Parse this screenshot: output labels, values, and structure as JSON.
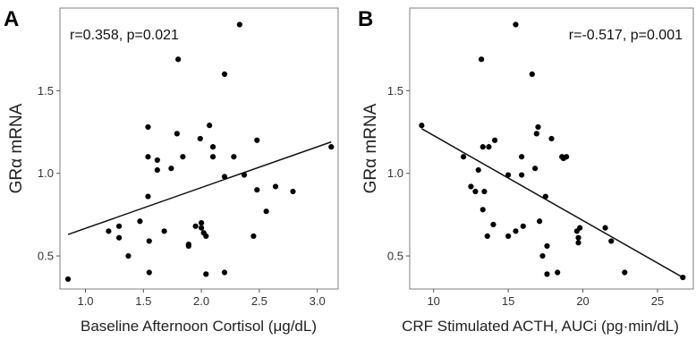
{
  "chart_data": [
    {
      "panel": "A",
      "type": "scatter",
      "stat": "r=0.358, p=0.021",
      "ylabel": "GRα mRNA",
      "xlabel": "Baseline Afternoon Cortisol (μg/dL)",
      "xlim": [
        0.78,
        3.18
      ],
      "ylim": [
        0.3,
        2.0
      ],
      "xticks": [
        "1.0",
        "1.5",
        "2.0",
        "2.5",
        "3.0"
      ],
      "yticks": [
        "0.5",
        "1.0",
        "1.5"
      ],
      "xtick_values": [
        1.0,
        1.5,
        2.0,
        2.5,
        3.0
      ],
      "ytick_values": [
        0.5,
        1.0,
        1.5
      ],
      "grid": false,
      "points": [
        [
          0.85,
          0.36
        ],
        [
          1.2,
          0.65
        ],
        [
          1.29,
          0.61
        ],
        [
          1.29,
          0.68
        ],
        [
          1.37,
          0.5
        ],
        [
          1.47,
          0.71
        ],
        [
          1.54,
          1.28
        ],
        [
          1.54,
          1.1
        ],
        [
          1.54,
          0.86
        ],
        [
          1.55,
          0.59
        ],
        [
          1.55,
          0.4
        ],
        [
          1.62,
          1.08
        ],
        [
          1.62,
          1.02
        ],
        [
          1.68,
          0.65
        ],
        [
          1.74,
          1.03
        ],
        [
          1.79,
          1.24
        ],
        [
          1.8,
          1.69
        ],
        [
          1.84,
          1.1
        ],
        [
          1.89,
          0.57
        ],
        [
          1.89,
          0.56
        ],
        [
          1.95,
          0.68
        ],
        [
          1.99,
          1.21
        ],
        [
          2.0,
          0.7
        ],
        [
          2.0,
          0.67
        ],
        [
          2.02,
          0.64
        ],
        [
          2.04,
          0.62
        ],
        [
          2.04,
          0.39
        ],
        [
          2.07,
          1.29
        ],
        [
          2.1,
          1.16
        ],
        [
          2.1,
          1.1
        ],
        [
          2.2,
          1.6
        ],
        [
          2.2,
          0.98
        ],
        [
          2.2,
          0.4
        ],
        [
          2.28,
          1.1
        ],
        [
          2.33,
          1.9
        ],
        [
          2.37,
          0.99
        ],
        [
          2.45,
          0.62
        ],
        [
          2.48,
          1.2
        ],
        [
          2.48,
          0.9
        ],
        [
          2.56,
          0.77
        ],
        [
          2.64,
          0.92
        ],
        [
          2.79,
          0.89
        ],
        [
          3.12,
          1.16
        ]
      ],
      "fit_line": [
        [
          0.85,
          0.63
        ],
        [
          3.12,
          1.19
        ]
      ]
    },
    {
      "panel": "B",
      "type": "scatter",
      "stat": "r=-0.517, p=0.001",
      "ylabel": "GRα mRNA",
      "xlabel": "CRF Stimulated ACTH, AUCi (pg·min/dL)",
      "xlim": [
        8.4,
        27.4
      ],
      "ylim": [
        0.3,
        2.0
      ],
      "xticks": [
        "10",
        "15",
        "20",
        "25"
      ],
      "yticks": [
        "0.5",
        "1.0",
        "1.5"
      ],
      "xtick_values": [
        10,
        15,
        20,
        25
      ],
      "ytick_values": [
        0.5,
        1.0,
        1.5
      ],
      "grid": false,
      "points": [
        [
          9.2,
          1.29
        ],
        [
          12.0,
          1.1
        ],
        [
          12.5,
          0.92
        ],
        [
          12.8,
          0.89
        ],
        [
          13.0,
          1.02
        ],
        [
          13.2,
          1.69
        ],
        [
          13.3,
          0.78
        ],
        [
          13.3,
          1.16
        ],
        [
          13.4,
          0.89
        ],
        [
          13.6,
          0.62
        ],
        [
          13.7,
          1.16
        ],
        [
          14.0,
          0.69
        ],
        [
          14.1,
          1.2
        ],
        [
          15.0,
          0.99
        ],
        [
          15.0,
          0.62
        ],
        [
          15.5,
          1.9
        ],
        [
          15.5,
          0.65
        ],
        [
          15.9,
          0.99
        ],
        [
          15.9,
          1.1
        ],
        [
          16.0,
          0.68
        ],
        [
          16.6,
          1.6
        ],
        [
          16.8,
          1.03
        ],
        [
          16.9,
          1.24
        ],
        [
          17.0,
          1.28
        ],
        [
          17.1,
          0.71
        ],
        [
          17.3,
          0.5
        ],
        [
          17.5,
          0.86
        ],
        [
          17.6,
          0.39
        ],
        [
          17.6,
          0.56
        ],
        [
          17.9,
          1.21
        ],
        [
          18.3,
          0.4
        ],
        [
          18.6,
          1.1
        ],
        [
          18.7,
          1.09
        ],
        [
          18.9,
          1.1
        ],
        [
          19.6,
          0.65
        ],
        [
          19.7,
          0.61
        ],
        [
          19.7,
          0.58
        ],
        [
          19.8,
          0.67
        ],
        [
          21.5,
          0.67
        ],
        [
          21.9,
          0.59
        ],
        [
          22.8,
          0.4
        ],
        [
          26.7,
          0.37
        ]
      ],
      "fit_line": [
        [
          9.2,
          1.27
        ],
        [
          26.7,
          0.37
        ]
      ]
    }
  ]
}
